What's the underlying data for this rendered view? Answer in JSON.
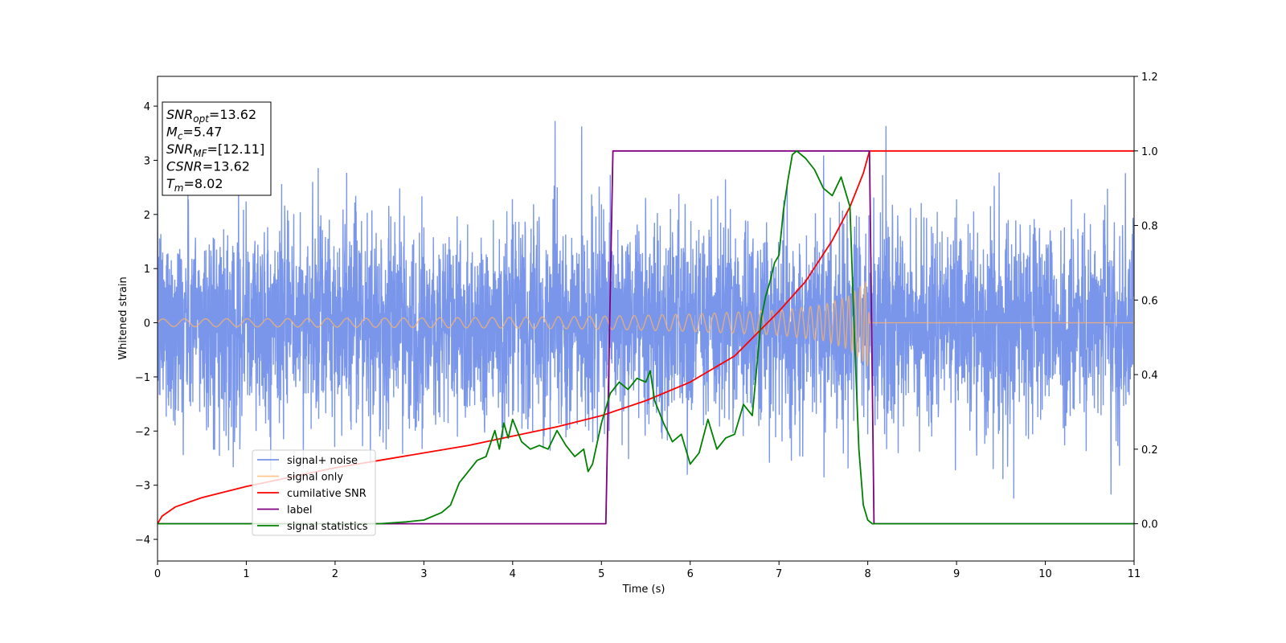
{
  "chart_data": {
    "type": "line",
    "xlabel": "Time (s)",
    "ylabel": "Whitened strain",
    "xlim": [
      0,
      11
    ],
    "ylim": [
      -4.4,
      4.55
    ],
    "y2lim": [
      -0.1,
      1.2
    ],
    "x_ticks": [
      0,
      1,
      2,
      3,
      4,
      5,
      6,
      7,
      8,
      9,
      10,
      11
    ],
    "y_ticks": [
      -4,
      -3,
      -2,
      -1,
      0,
      1,
      2,
      3,
      4
    ],
    "y2_ticks": [
      "0.0",
      "0.2",
      "0.4",
      "0.6",
      "0.8",
      "1.0",
      "1.2"
    ],
    "grid": false,
    "legend_position": "lower-left",
    "annotation": [
      {
        "var": "SNR",
        "sub": "opt",
        "value": "=13.62"
      },
      {
        "var": "M",
        "sub": "c",
        "value": "=5.47"
      },
      {
        "var": "SNR",
        "sub": "MF",
        "value": "=[12.11]"
      },
      {
        "var": "CSNR",
        "sub": "",
        "value": "=13.62"
      },
      {
        "var": "T",
        "sub": "m",
        "value": "=8.02"
      }
    ],
    "series": [
      {
        "name": "signal+ noise",
        "color": "#4169e1",
        "axis": "left",
        "kind": "noise",
        "std": 0.95,
        "range": [
          -3.9,
          4.2
        ],
        "x_range": [
          0,
          11
        ]
      },
      {
        "name": "signal only",
        "color": "#ffb366",
        "axis": "left",
        "kind": "chirp",
        "envelope_x": [
          0,
          2,
          4,
          5,
          6,
          7,
          7.5,
          7.8,
          8.0,
          8.02
        ],
        "envelope_y": [
          0.07,
          0.08,
          0.1,
          0.12,
          0.16,
          0.23,
          0.33,
          0.5,
          0.8,
          0.0
        ],
        "post_merger_value": 0.0
      },
      {
        "name": "cumilative SNR",
        "color": "#ff0000",
        "axis": "right",
        "x": [
          0,
          0.05,
          0.2,
          0.5,
          1,
          1.5,
          2,
          2.5,
          3,
          3.5,
          4,
          4.5,
          5,
          5.5,
          6,
          6.5,
          7,
          7.3,
          7.6,
          7.8,
          7.95,
          8.02,
          8.05,
          9,
          10,
          11
        ],
        "y": [
          0.0,
          0.02,
          0.045,
          0.07,
          0.1,
          0.125,
          0.15,
          0.17,
          0.19,
          0.21,
          0.235,
          0.26,
          0.29,
          0.33,
          0.38,
          0.45,
          0.57,
          0.65,
          0.76,
          0.85,
          0.94,
          1.0,
          1.0,
          1.0,
          1.0,
          1.0
        ]
      },
      {
        "name": "label",
        "color": "#800080",
        "axis": "right",
        "x": [
          0,
          5.05,
          5.13,
          8.02,
          8.07,
          11
        ],
        "y": [
          0.0,
          0.0,
          1.0,
          1.0,
          0.0,
          0.0
        ]
      },
      {
        "name": "signal statistics",
        "color": "#008000",
        "axis": "right",
        "x": [
          0,
          1,
          2,
          2.5,
          2.8,
          3.0,
          3.2,
          3.3,
          3.4,
          3.5,
          3.6,
          3.7,
          3.8,
          3.85,
          3.9,
          3.95,
          4.0,
          4.1,
          4.2,
          4.3,
          4.4,
          4.5,
          4.6,
          4.7,
          4.8,
          4.85,
          4.9,
          5.0,
          5.1,
          5.2,
          5.3,
          5.4,
          5.5,
          5.55,
          5.6,
          5.7,
          5.8,
          5.9,
          6.0,
          6.1,
          6.2,
          6.3,
          6.4,
          6.5,
          6.6,
          6.7,
          6.8,
          6.85,
          6.9,
          6.95,
          7.0,
          7.05,
          7.1,
          7.15,
          7.2,
          7.25,
          7.3,
          7.4,
          7.5,
          7.6,
          7.7,
          7.8,
          7.85,
          7.9,
          7.95,
          8.0,
          8.05,
          8.1,
          11
        ],
        "y": [
          0.0,
          0.0,
          0.0,
          0.0,
          0.005,
          0.01,
          0.03,
          0.05,
          0.11,
          0.14,
          0.17,
          0.18,
          0.25,
          0.2,
          0.27,
          0.23,
          0.28,
          0.22,
          0.2,
          0.21,
          0.2,
          0.25,
          0.21,
          0.18,
          0.2,
          0.14,
          0.16,
          0.27,
          0.35,
          0.38,
          0.36,
          0.39,
          0.38,
          0.41,
          0.33,
          0.27,
          0.22,
          0.24,
          0.16,
          0.19,
          0.28,
          0.2,
          0.23,
          0.24,
          0.32,
          0.29,
          0.55,
          0.61,
          0.65,
          0.7,
          0.72,
          0.84,
          0.92,
          0.99,
          1.0,
          0.99,
          0.98,
          0.95,
          0.9,
          0.88,
          0.93,
          0.85,
          0.5,
          0.2,
          0.05,
          0.01,
          0.0,
          0.0,
          0.0
        ]
      }
    ]
  }
}
